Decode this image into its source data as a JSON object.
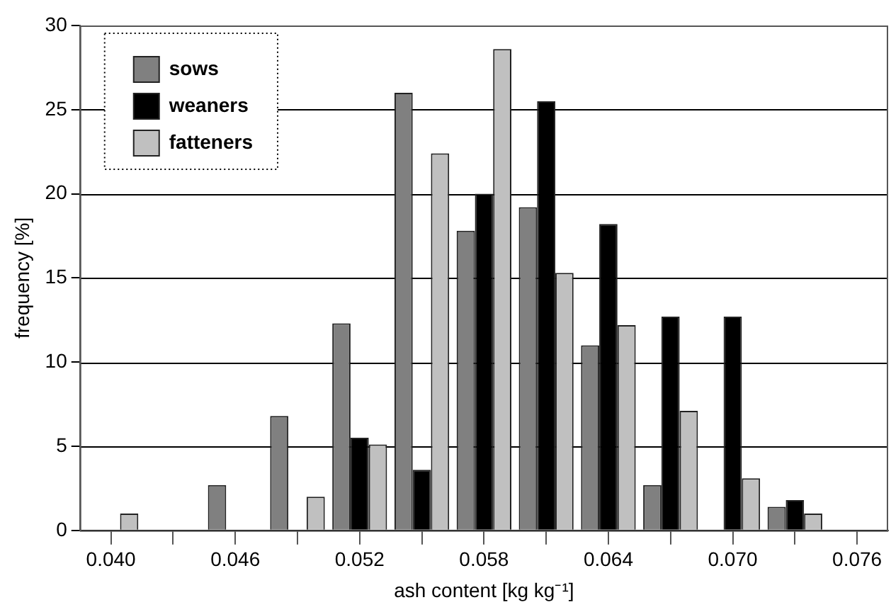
{
  "chart_data": {
    "type": "bar",
    "xlabel": "ash content [kg kg⁻¹]",
    "ylabel": "frequency [%]",
    "categories": [
      "0.040",
      null,
      "0.046",
      null,
      "0.052",
      null,
      "0.058",
      null,
      "0.064",
      null,
      "0.070",
      null,
      "0.076"
    ],
    "series": [
      {
        "name": "sows",
        "color": "#808080",
        "values": [
          0,
          0,
          2.7,
          6.8,
          12.3,
          26,
          17.8,
          19.2,
          11,
          2.7,
          0,
          1.4,
          0
        ]
      },
      {
        "name": "weaners",
        "color": "#000000",
        "values": [
          0,
          0,
          0,
          0,
          5.5,
          3.6,
          20,
          25.5,
          18.2,
          12.7,
          12.7,
          1.8,
          0
        ]
      },
      {
        "name": "fatteners",
        "color": "#c0c0c0",
        "values": [
          1.0,
          0,
          0,
          2.0,
          5.1,
          22.4,
          28.6,
          15.3,
          12.2,
          7.1,
          3.1,
          1.0,
          0
        ]
      }
    ],
    "ylim": [
      0,
      30
    ],
    "yticks": [
      0,
      5,
      10,
      15,
      20,
      25,
      30
    ],
    "grid": "y",
    "legend": "top left"
  }
}
